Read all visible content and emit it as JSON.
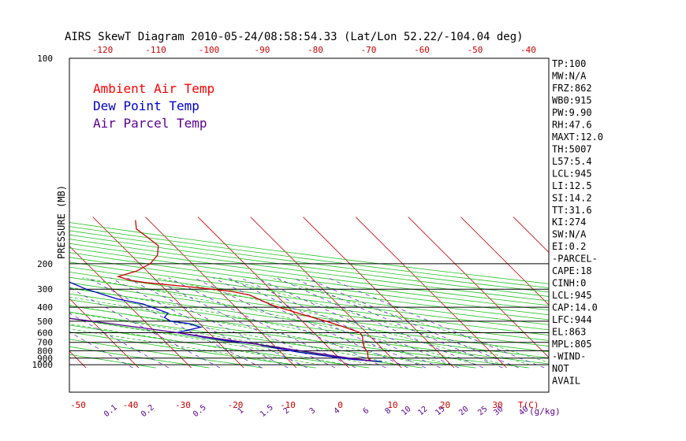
{
  "chart_data": {
    "type": "line",
    "title": "AIRS SkewT Diagram 2010-05-24/08:58:54.33 (Lat/Lon 52.22/-104.04 deg)",
    "ylabel": "PRESSURE (MB)",
    "xlabel_unit": "T(C)",
    "mixing_unit": "(g/kg)",
    "pressure_ticks": [
      100,
      200,
      300,
      400,
      500,
      600,
      700,
      800,
      900,
      1000
    ],
    "top_temp_ticks": [
      -120,
      -110,
      -100,
      -90,
      -80,
      -70,
      -60,
      -50,
      -40
    ],
    "bottom_temp_ticks": [
      -50,
      -40,
      -30,
      -20,
      -10,
      0,
      10,
      20,
      30
    ],
    "mixing_ratio_labels": [
      "0.1",
      "0.2",
      "0.5",
      "1",
      "1.5",
      "2",
      "3",
      "4",
      "6",
      "8",
      "10",
      "12",
      "15",
      "20",
      "25",
      "30",
      "40"
    ],
    "legend": [
      {
        "label": "Ambient Air Temp",
        "color": "#ff0000"
      },
      {
        "label": "Dew Point Temp",
        "color": "#0000cc"
      },
      {
        "label": "Air Parcel Temp",
        "color": "#5a0090"
      }
    ],
    "series": [
      {
        "name": "Ambient Air Temp",
        "color": "#cc0000",
        "points": [
          [
            4.5,
            940
          ],
          [
            5.5,
            930
          ],
          [
            5.5,
            900
          ],
          [
            6.5,
            820
          ],
          [
            6.8,
            760
          ],
          [
            7.5,
            700
          ],
          [
            8.5,
            640
          ],
          [
            8.8,
            600
          ],
          [
            6.5,
            540
          ],
          [
            4.5,
            500
          ],
          [
            2.0,
            460
          ],
          [
            -0.5,
            420
          ],
          [
            -2.5,
            390
          ],
          [
            -3.8,
            360
          ],
          [
            -5.0,
            330
          ],
          [
            -8.0,
            310
          ],
          [
            -11.0,
            300
          ],
          [
            -14.5,
            290
          ],
          [
            -22.5,
            270
          ],
          [
            -25.0,
            260
          ],
          [
            -26.5,
            245
          ],
          [
            -22.0,
            225
          ],
          [
            -18.0,
            200
          ],
          [
            -15.0,
            175
          ],
          [
            -13.0,
            150
          ],
          [
            -13.5,
            130
          ],
          [
            -14.0,
            115
          ],
          [
            -12.5,
            100
          ]
        ]
      },
      {
        "name": "Dew Point Temp",
        "color": "#0000cc",
        "points": [
          [
            7.5,
            950
          ],
          [
            5.0,
            935
          ],
          [
            2.5,
            920
          ],
          [
            0.5,
            900
          ],
          [
            -2.0,
            870
          ],
          [
            -6.5,
            820
          ],
          [
            -10.5,
            760
          ],
          [
            -13.0,
            720
          ],
          [
            -18.5,
            680
          ],
          [
            -24.0,
            620
          ],
          [
            -26.0,
            600
          ],
          [
            -20.5,
            550
          ],
          [
            -22.0,
            520
          ],
          [
            -25.0,
            500
          ],
          [
            -25.5,
            470
          ],
          [
            -24.0,
            440
          ],
          [
            -26.0,
            400
          ],
          [
            -27.0,
            380
          ],
          [
            -31.0,
            350
          ],
          [
            -35.0,
            300
          ],
          [
            -38.0,
            250
          ],
          [
            -42.0,
            220
          ],
          [
            -46.0,
            200
          ],
          [
            -56.0,
            175
          ],
          [
            -60.0,
            155
          ],
          [
            -61.0,
            140
          ],
          [
            -58.0,
            120
          ],
          [
            -59.5,
            100
          ]
        ]
      },
      {
        "name": "Air Parcel Temp",
        "color": "#5a0090",
        "points": [
          [
            6.0,
            945
          ],
          [
            2.0,
            900
          ],
          [
            -2.0,
            850
          ],
          [
            -6.0,
            800
          ],
          [
            -10.5,
            750
          ],
          [
            -15.0,
            700
          ],
          [
            -20.5,
            650
          ],
          [
            -26.0,
            600
          ],
          [
            -32.5,
            550
          ],
          [
            -40.0,
            500
          ],
          [
            -48.5,
            450
          ],
          [
            -57.5,
            400
          ],
          [
            -67.0,
            350
          ],
          [
            -78.0,
            300
          ],
          [
            -91.0,
            250
          ],
          [
            -103.0,
            210
          ],
          [
            -108.0,
            190
          ],
          [
            -114.0,
            160
          ],
          [
            -118.0,
            140
          ],
          [
            -125.0,
            115
          ],
          [
            -131.0,
            100
          ]
        ]
      }
    ],
    "indices": [
      "TP:100",
      "MW:N/A",
      "FRZ:862",
      "WB0:915",
      "PW:9.90",
      "RH:47.6",
      "MAXT:12.0",
      "TH:5007",
      "L57:5.4",
      "LCL:945",
      "LI:12.5",
      "SI:14.2",
      "TT:31.6",
      "KI:274",
      "SW:N/A",
      "EI:0.2",
      "-PARCEL-",
      "CAPE:18",
      "CINH:0",
      "LCL:945",
      "CAP:14.0",
      "LFC:944",
      "EL:863",
      "MPL:805",
      "-WIND-",
      "NOT",
      "AVAIL"
    ]
  }
}
